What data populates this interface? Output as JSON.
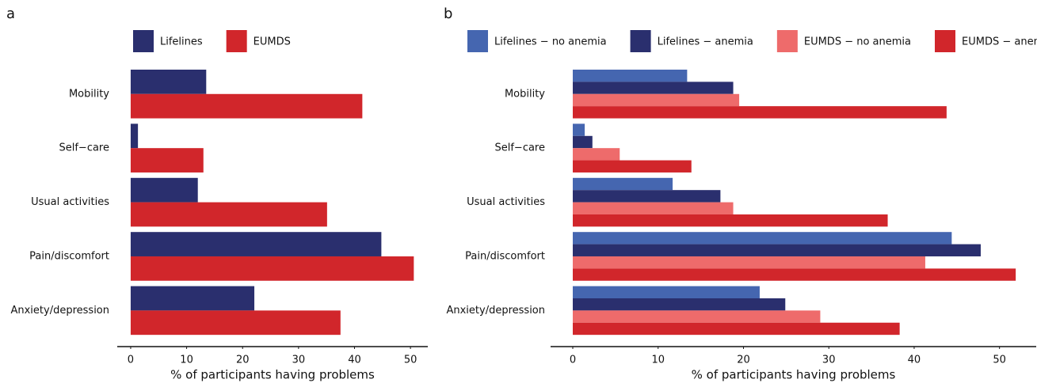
{
  "chart_data": [
    {
      "type": "barh",
      "panel": "a",
      "xlabel": "% of participants having problems",
      "categories": [
        "Mobility",
        "Self−care",
        "Usual activities",
        "Pain/discomfort",
        "Anxiety/depression"
      ],
      "series": [
        {
          "name": "Lifelines",
          "color": "#2a2f6e",
          "values": [
            13.5,
            1.3,
            12.0,
            44.8,
            22.1
          ]
        },
        {
          "name": "EUMDS",
          "color": "#d1262b",
          "values": [
            41.4,
            13.0,
            35.1,
            50.6,
            37.5
          ]
        }
      ],
      "xlim": [
        -2.4,
        53.1
      ],
      "xticks": [
        0,
        10,
        20,
        30,
        40,
        50
      ],
      "grid": false
    },
    {
      "type": "barh",
      "panel": "b",
      "xlabel": "% of participants having problems",
      "categories": [
        "Mobility",
        "Self−care",
        "Usual activities",
        "Pain/discomfort",
        "Anxiety/depression"
      ],
      "series": [
        {
          "name": "Lifelines − no anemia",
          "color": "#4566b0",
          "values": [
            13.4,
            1.4,
            11.7,
            44.4,
            21.9
          ]
        },
        {
          "name": "Lifelines − anemia",
          "color": "#2a2f6e",
          "values": [
            18.8,
            2.3,
            17.3,
            47.8,
            24.9
          ]
        },
        {
          "name": "EUMDS − no anemia",
          "color": "#ee6b6b",
          "values": [
            19.5,
            5.5,
            18.8,
            41.3,
            29.0
          ]
        },
        {
          "name": "EUMDS − anemia",
          "color": "#d1262b",
          "values": [
            43.8,
            13.9,
            36.9,
            51.9,
            38.3
          ]
        }
      ],
      "xlim": [
        -2.6,
        54.3
      ],
      "xticks": [
        0,
        10,
        20,
        30,
        40,
        50
      ],
      "grid": false
    }
  ]
}
